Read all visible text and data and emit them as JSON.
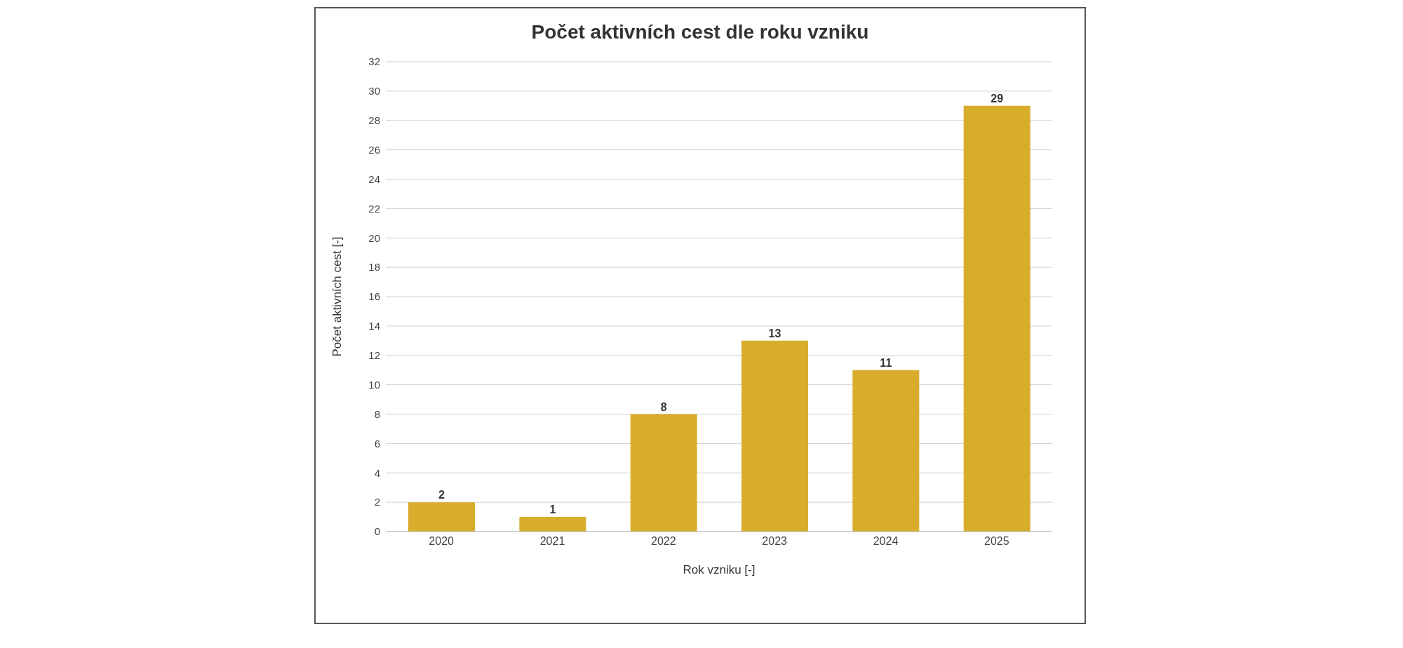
{
  "chart_data": {
    "type": "bar",
    "title": "Počet aktivních cest dle roku vzniku",
    "xlabel": "Rok vzniku [-]",
    "ylabel": "Počet aktivních cest [-]",
    "categories": [
      "2020",
      "2021",
      "2022",
      "2023",
      "2024",
      "2025"
    ],
    "values": [
      2,
      1,
      8,
      13,
      11,
      29
    ],
    "color": "#d9ad2c",
    "ylim": [
      0,
      32
    ],
    "yticks": [
      0,
      2,
      4,
      6,
      8,
      10,
      12,
      14,
      16,
      18,
      20,
      22,
      24,
      26,
      28,
      30,
      32
    ],
    "grid": "y",
    "data_labels": true
  }
}
